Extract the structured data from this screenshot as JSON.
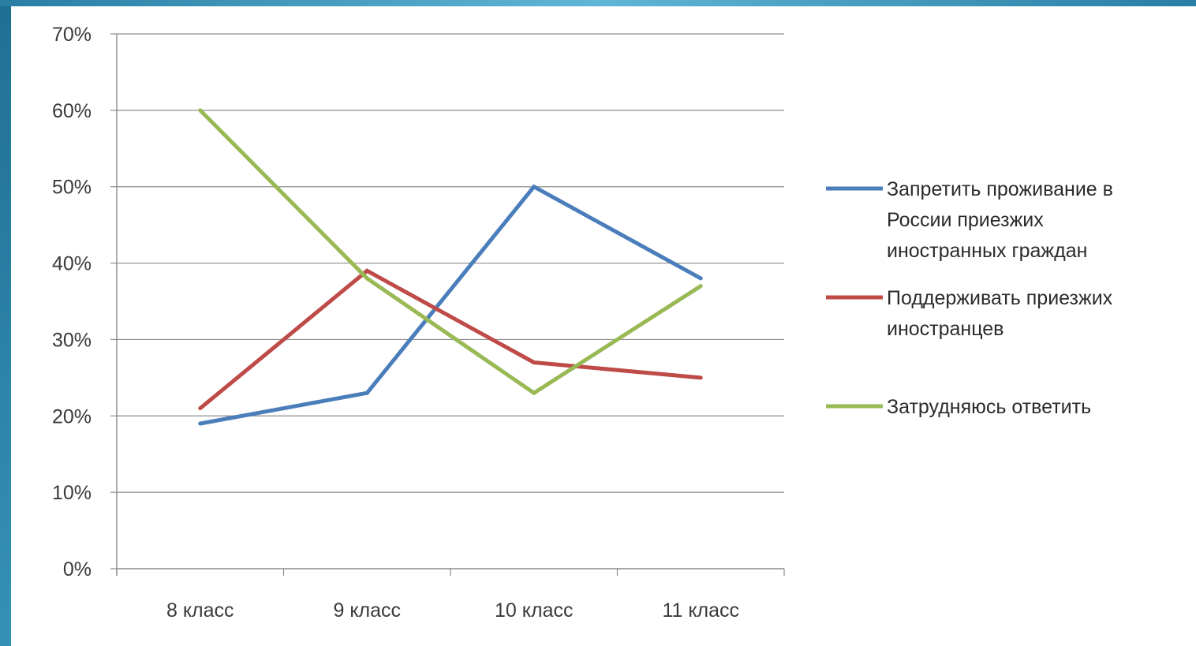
{
  "chart_data": {
    "type": "line",
    "title": "",
    "xlabel": "",
    "ylabel": "",
    "categories": [
      "8 класс",
      "9 класс",
      "10 класс",
      "11 класс"
    ],
    "yticks": [
      "0%",
      "10%",
      "20%",
      "30%",
      "40%",
      "50%",
      "60%",
      "70%"
    ],
    "ylim": [
      0,
      70
    ],
    "grid": true,
    "legend_position": "right",
    "series": [
      {
        "name": "Запретить проживание в России приезжих иностранных граждан",
        "name_lines": [
          "Запретить проживание в",
          "России приезжих",
          "иностранных граждан"
        ],
        "color": "#4a7ebb",
        "values": [
          19,
          23,
          50,
          38
        ]
      },
      {
        "name": "Поддерживать приезжих иностранцев",
        "name_lines": [
          "Поддерживать приезжих",
          "иностранцев"
        ],
        "color": "#be4b48",
        "values": [
          21,
          39,
          27,
          25
        ]
      },
      {
        "name": "Затрудняюсь ответить",
        "name_lines": [
          "Затрудняюсь ответить"
        ],
        "color": "#98b954",
        "values": [
          60,
          38,
          23,
          37
        ]
      }
    ]
  }
}
